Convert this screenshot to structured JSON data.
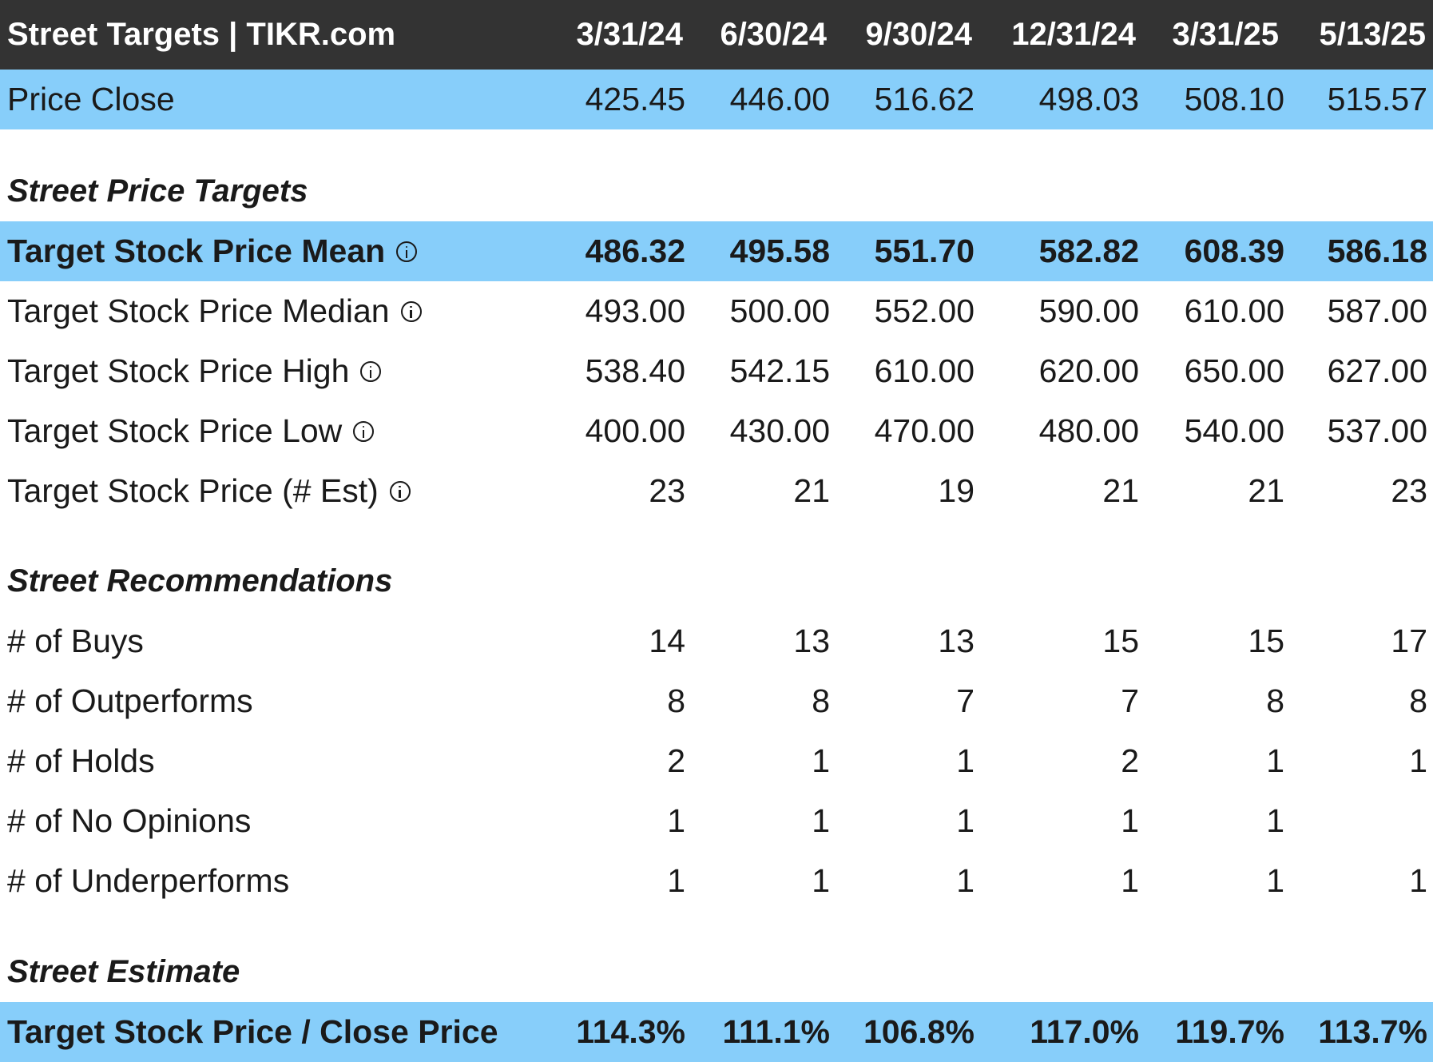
{
  "header": {
    "title": "Street Targets | TIKR.com",
    "dates": [
      "3/31/24",
      "6/30/24",
      "9/30/24",
      "12/31/24",
      "3/31/25",
      "5/13/25"
    ]
  },
  "price_close": {
    "label": "Price Close",
    "values": [
      "425.45",
      "446.00",
      "516.62",
      "498.03",
      "508.10",
      "515.57"
    ]
  },
  "sections": {
    "price_targets": "Street Price Targets",
    "recommendations": "Street Recommendations",
    "estimate": "Street Estimate"
  },
  "targets": [
    {
      "label": "Target Stock Price Mean",
      "values": [
        "486.32",
        "495.58",
        "551.70",
        "582.82",
        "608.39",
        "586.18"
      ]
    },
    {
      "label": "Target Stock Price Median",
      "values": [
        "493.00",
        "500.00",
        "552.00",
        "590.00",
        "610.00",
        "587.00"
      ]
    },
    {
      "label": "Target Stock Price High",
      "values": [
        "538.40",
        "542.15",
        "610.00",
        "620.00",
        "650.00",
        "627.00"
      ]
    },
    {
      "label": "Target Stock Price Low",
      "values": [
        "400.00",
        "430.00",
        "470.00",
        "480.00",
        "540.00",
        "537.00"
      ]
    },
    {
      "label": "Target Stock Price (# Est)",
      "values": [
        "23",
        "21",
        "19",
        "21",
        "21",
        "23"
      ]
    }
  ],
  "recommendations": [
    {
      "label": "# of Buys",
      "values": [
        "14",
        "13",
        "13",
        "15",
        "15",
        "17"
      ]
    },
    {
      "label": "# of Outperforms",
      "values": [
        "8",
        "8",
        "7",
        "7",
        "8",
        "8"
      ]
    },
    {
      "label": "# of Holds",
      "values": [
        "2",
        "1",
        "1",
        "2",
        "1",
        "1"
      ]
    },
    {
      "label": "# of No Opinions",
      "values": [
        "1",
        "1",
        "1",
        "1",
        "1",
        ""
      ]
    },
    {
      "label": "# of Underperforms",
      "values": [
        "1",
        "1",
        "1",
        "1",
        "1",
        "1"
      ]
    }
  ],
  "estimate": {
    "label": "Target Stock Price / Close Price",
    "values": [
      "114.3%",
      "111.1%",
      "106.8%",
      "117.0%",
      "119.7%",
      "113.7%"
    ]
  },
  "colors": {
    "header_bg": "#333333",
    "highlight_bg": "#87cefa"
  },
  "icons": {
    "info": "info-icon"
  }
}
